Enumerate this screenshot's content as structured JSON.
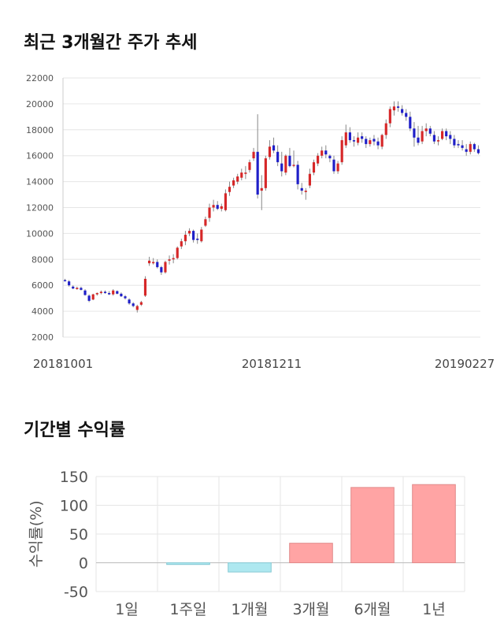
{
  "sections": {
    "price_title": "최근 3개월간 주가 추세",
    "returns_title": "기간별 수익률"
  },
  "colors": {
    "up": "#d62728",
    "down": "#1f1fc8",
    "grid": "#e6e6e6",
    "bar_positive": "#ffa4a4",
    "bar_positive_edge": "#e08a8a",
    "bar_negative": "#aee8f0",
    "bar_negative_edge": "#86c9d4"
  },
  "chart_data": [
    {
      "type": "candlestick",
      "ylim": [
        2000,
        22000
      ],
      "yticks": [
        2000,
        4000,
        6000,
        8000,
        10000,
        12000,
        14000,
        16000,
        18000,
        20000,
        22000
      ],
      "xticks": [
        "20181001",
        "20181211",
        "20190227"
      ],
      "grid": true,
      "candles": [
        [
          6400,
          6500,
          6300,
          6350
        ],
        [
          6300,
          6400,
          5900,
          6000
        ],
        [
          5900,
          6000,
          5700,
          5750
        ],
        [
          5750,
          5900,
          5650,
          5800
        ],
        [
          5800,
          5900,
          5600,
          5650
        ],
        [
          5600,
          5700,
          5200,
          5250
        ],
        [
          5200,
          5300,
          4700,
          4800
        ],
        [
          4900,
          5350,
          4850,
          5300
        ],
        [
          5300,
          5450,
          5200,
          5400
        ],
        [
          5400,
          5600,
          5300,
          5500
        ],
        [
          5500,
          5600,
          5350,
          5400
        ],
        [
          5400,
          5550,
          5250,
          5300
        ],
        [
          5300,
          5700,
          5200,
          5600
        ],
        [
          5550,
          5600,
          5300,
          5350
        ],
        [
          5350,
          5450,
          5100,
          5150
        ],
        [
          5150,
          5250,
          4900,
          5000
        ],
        [
          4900,
          5000,
          4500,
          4600
        ],
        [
          4600,
          4700,
          4300,
          4400
        ],
        [
          4100,
          4500,
          3900,
          4400
        ],
        [
          4500,
          4800,
          4400,
          4700
        ],
        [
          5200,
          6700,
          5100,
          6500
        ],
        [
          7700,
          8200,
          7500,
          7900
        ],
        [
          7700,
          8100,
          7600,
          7800
        ],
        [
          7800,
          8000,
          7300,
          7400
        ],
        [
          7400,
          7500,
          6800,
          7000
        ],
        [
          7000,
          7900,
          6900,
          7800
        ],
        [
          7900,
          8300,
          7600,
          8000
        ],
        [
          8000,
          8400,
          7700,
          8100
        ],
        [
          8100,
          9000,
          8000,
          8900
        ],
        [
          9000,
          9600,
          8800,
          9400
        ],
        [
          9400,
          10200,
          9100,
          9900
        ],
        [
          10000,
          10400,
          9800,
          10200
        ],
        [
          10200,
          10300,
          9300,
          9500
        ],
        [
          9600,
          10000,
          9200,
          9500
        ],
        [
          9400,
          10500,
          9300,
          10300
        ],
        [
          10600,
          11300,
          10500,
          11100
        ],
        [
          11200,
          12300,
          10900,
          12000
        ],
        [
          12000,
          12600,
          11700,
          12200
        ],
        [
          12200,
          12500,
          11800,
          11900
        ],
        [
          11900,
          12300,
          11700,
          12100
        ],
        [
          11800,
          13400,
          11700,
          13100
        ],
        [
          13200,
          14000,
          12900,
          13600
        ],
        [
          13700,
          14300,
          13500,
          14100
        ],
        [
          14000,
          14600,
          13800,
          14400
        ],
        [
          14300,
          15000,
          14100,
          14700
        ],
        [
          14600,
          15200,
          14200,
          14700
        ],
        [
          14900,
          15700,
          14700,
          15500
        ],
        [
          15800,
          16600,
          15600,
          16300
        ],
        [
          16300,
          19200,
          12700,
          13000
        ],
        [
          13300,
          14500,
          11800,
          13500
        ],
        [
          13500,
          16000,
          13300,
          15800
        ],
        [
          15900,
          17200,
          15700,
          16700
        ],
        [
          16800,
          17400,
          16200,
          16400
        ],
        [
          16300,
          16800,
          15200,
          15500
        ],
        [
          15400,
          16300,
          14400,
          14800
        ],
        [
          14700,
          16100,
          14500,
          16000
        ],
        [
          16000,
          16600,
          15100,
          15200
        ],
        [
          15300,
          16400,
          15100,
          15300
        ],
        [
          15300,
          15600,
          13400,
          13800
        ],
        [
          13500,
          13900,
          13000,
          13300
        ],
        [
          13200,
          13500,
          12600,
          13300
        ],
        [
          13700,
          15000,
          13500,
          14600
        ],
        [
          14700,
          15700,
          14500,
          15500
        ],
        [
          15400,
          16200,
          15200,
          16000
        ],
        [
          16000,
          16700,
          15800,
          16400
        ],
        [
          16400,
          16800,
          15800,
          16100
        ],
        [
          16000,
          16100,
          15500,
          15800
        ],
        [
          15700,
          16000,
          14600,
          14800
        ],
        [
          14800,
          15600,
          14600,
          15400
        ],
        [
          15500,
          17500,
          15300,
          17200
        ],
        [
          16800,
          18400,
          16600,
          17800
        ],
        [
          17800,
          18200,
          17000,
          17200
        ],
        [
          17200,
          17500,
          16700,
          17100
        ],
        [
          17000,
          17800,
          16800,
          17400
        ],
        [
          17500,
          17800,
          17000,
          17300
        ],
        [
          17300,
          17500,
          16600,
          16900
        ],
        [
          16900,
          17400,
          16700,
          17200
        ],
        [
          17300,
          17600,
          16800,
          17100
        ],
        [
          17100,
          17400,
          16500,
          16800
        ],
        [
          16700,
          17700,
          16500,
          17600
        ],
        [
          17600,
          18800,
          17300,
          18500
        ],
        [
          18500,
          19800,
          18200,
          19600
        ],
        [
          19500,
          20200,
          19100,
          19800
        ],
        [
          19800,
          20200,
          19400,
          19700
        ],
        [
          19600,
          19900,
          19100,
          19300
        ],
        [
          19300,
          19600,
          18700,
          19000
        ],
        [
          19000,
          19400,
          17900,
          18100
        ],
        [
          18100,
          18600,
          16700,
          17400
        ],
        [
          17400,
          18300,
          16800,
          17000
        ],
        [
          17100,
          18300,
          16900,
          17900
        ],
        [
          17900,
          18500,
          17500,
          18100
        ],
        [
          18100,
          18300,
          17500,
          17700
        ],
        [
          17600,
          17900,
          16900,
          17100
        ],
        [
          17100,
          17500,
          16800,
          17200
        ],
        [
          17300,
          18100,
          17200,
          17900
        ],
        [
          17900,
          18100,
          17200,
          17500
        ],
        [
          17600,
          17900,
          16900,
          17300
        ],
        [
          17300,
          17600,
          16600,
          16800
        ],
        [
          16900,
          17200,
          16600,
          16800
        ],
        [
          16800,
          17200,
          16400,
          16600
        ],
        [
          16500,
          16900,
          16000,
          16300
        ],
        [
          16300,
          17100,
          16100,
          16900
        ],
        [
          16900,
          17000,
          16300,
          16500
        ],
        [
          16500,
          16800,
          16100,
          16200
        ]
      ]
    },
    {
      "type": "bar",
      "categories": [
        "1일",
        "1주일",
        "1개월",
        "3개월",
        "6개월",
        "1년"
      ],
      "values": [
        0,
        -3,
        -16,
        34,
        131,
        136
      ],
      "ylabel": "수익률(%)",
      "ylim": [
        -50,
        150
      ],
      "yticks": [
        -50,
        0,
        50,
        100,
        150
      ],
      "grid": true
    }
  ]
}
